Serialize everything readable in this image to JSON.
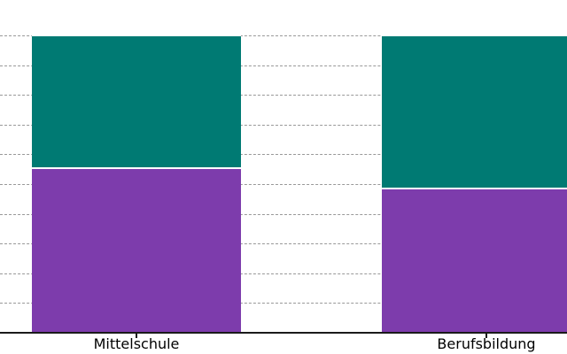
{
  "chart_data": {
    "type": "bar",
    "subtype": "stacked-100-percent",
    "title": "",
    "xlabel": "",
    "ylabel": "",
    "categories": [
      "Mittelschule",
      "Berufsbildung"
    ],
    "series": [
      {
        "name": "bottom-segment-purple",
        "color": "#7d3cac",
        "values": [
          55.5,
          48.5
        ]
      },
      {
        "name": "top-segment-teal",
        "color": "#007a73",
        "values": [
          44.5,
          51.5
        ]
      }
    ],
    "stack_order": "bottom-to-top",
    "ylim": [
      0,
      100
    ],
    "y_tick_labels_visible": false,
    "grid": {
      "visible": true,
      "step": 10,
      "line_style": "dashed",
      "color": "#999999"
    },
    "legend_position": "none",
    "axis_color": "#1a1a1a",
    "text_color": "#000000",
    "background": "#ffffff"
  }
}
